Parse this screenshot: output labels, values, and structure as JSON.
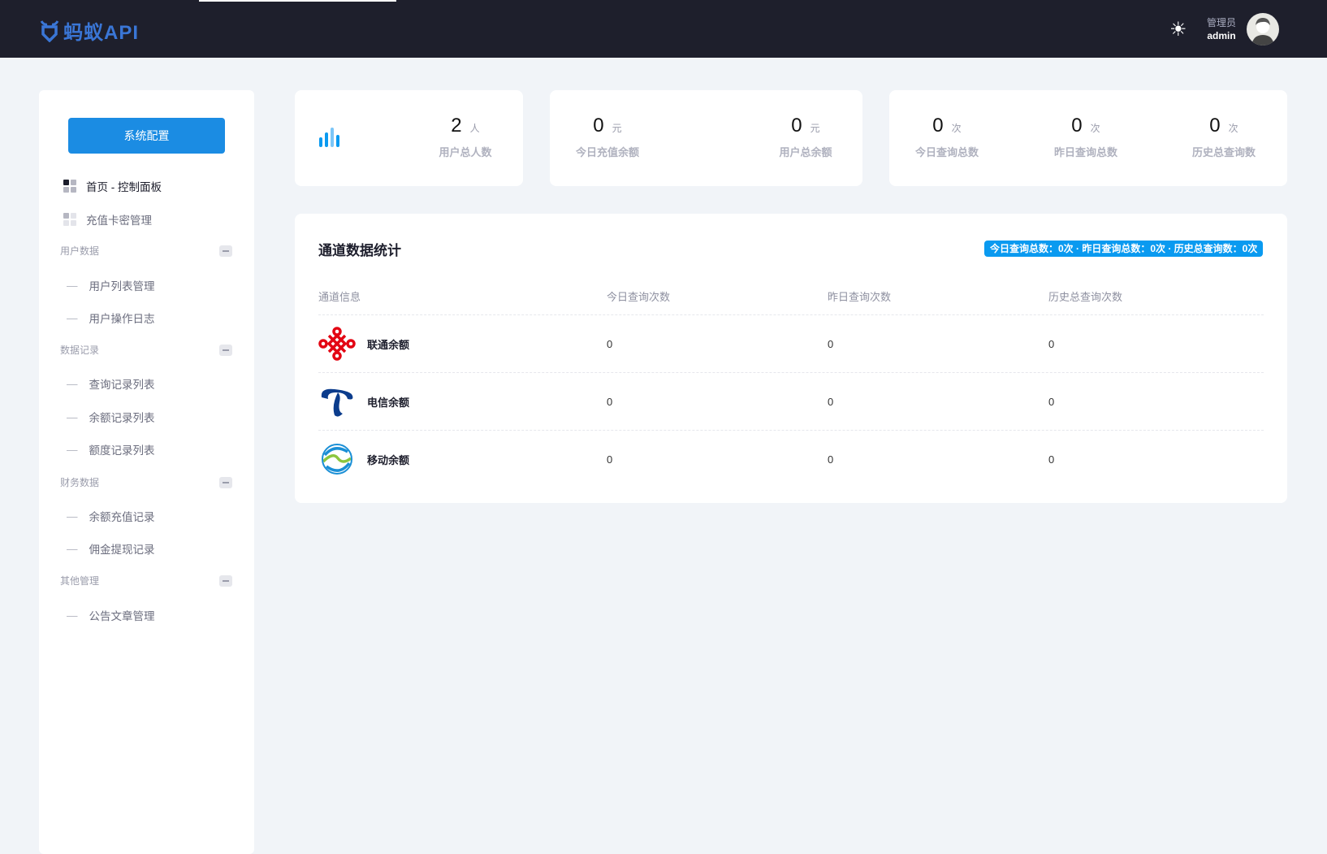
{
  "header": {
    "logo_text": "蚂蚁API",
    "theme_icon": "sun-icon",
    "role": "管理员",
    "username": "admin",
    "avatar_icon": "user-avatar"
  },
  "sidebar": {
    "config_button": "系统配置",
    "items": [
      {
        "label": "首页 - 控制面板",
        "active": true
      },
      {
        "label": "充值卡密管理"
      }
    ],
    "sections": [
      {
        "title": "用户数据",
        "items": [
          "用户列表管理",
          "用户操作日志"
        ]
      },
      {
        "title": "数据记录",
        "items": [
          "查询记录列表",
          "余额记录列表",
          "额度记录列表"
        ]
      },
      {
        "title": "财务数据",
        "items": [
          "余额充值记录",
          "佣金提现记录"
        ]
      },
      {
        "title": "其他管理",
        "items": [
          "公告文章管理"
        ]
      }
    ]
  },
  "stats": [
    {
      "value": "2",
      "unit": "人",
      "label": "用户总人数"
    },
    {
      "value": "0",
      "unit": "元",
      "label": "今日充值余额"
    },
    {
      "value": "0",
      "unit": "元",
      "label": "用户总余额"
    },
    {
      "value": "0",
      "unit": "次",
      "label": "今日查询总数"
    },
    {
      "value": "0",
      "unit": "次",
      "label": "昨日查询总数"
    },
    {
      "value": "0",
      "unit": "次",
      "label": "历史总查询数"
    }
  ],
  "panel": {
    "title": "通道数据统计",
    "badge": "今日查询总数：0次 · 昨日查询总数：0次 · 历史总查询数：0次",
    "columns": [
      "通道信息",
      "今日查询次数",
      "昨日查询次数",
      "历史总查询次数"
    ],
    "rows": [
      {
        "name": "联通余额",
        "logo": "china-unicom-logo",
        "today": "0",
        "yesterday": "0",
        "total": "0"
      },
      {
        "name": "电信余额",
        "logo": "china-telecom-logo",
        "today": "0",
        "yesterday": "0",
        "total": "0"
      },
      {
        "name": "移动余额",
        "logo": "china-mobile-logo",
        "today": "0",
        "yesterday": "0",
        "total": "0"
      }
    ]
  },
  "colors": {
    "header_bg": "#1e1f2c",
    "accent": "#1b8ce3",
    "badge": "#0a9af0",
    "page_bg": "#f1f4f8"
  }
}
